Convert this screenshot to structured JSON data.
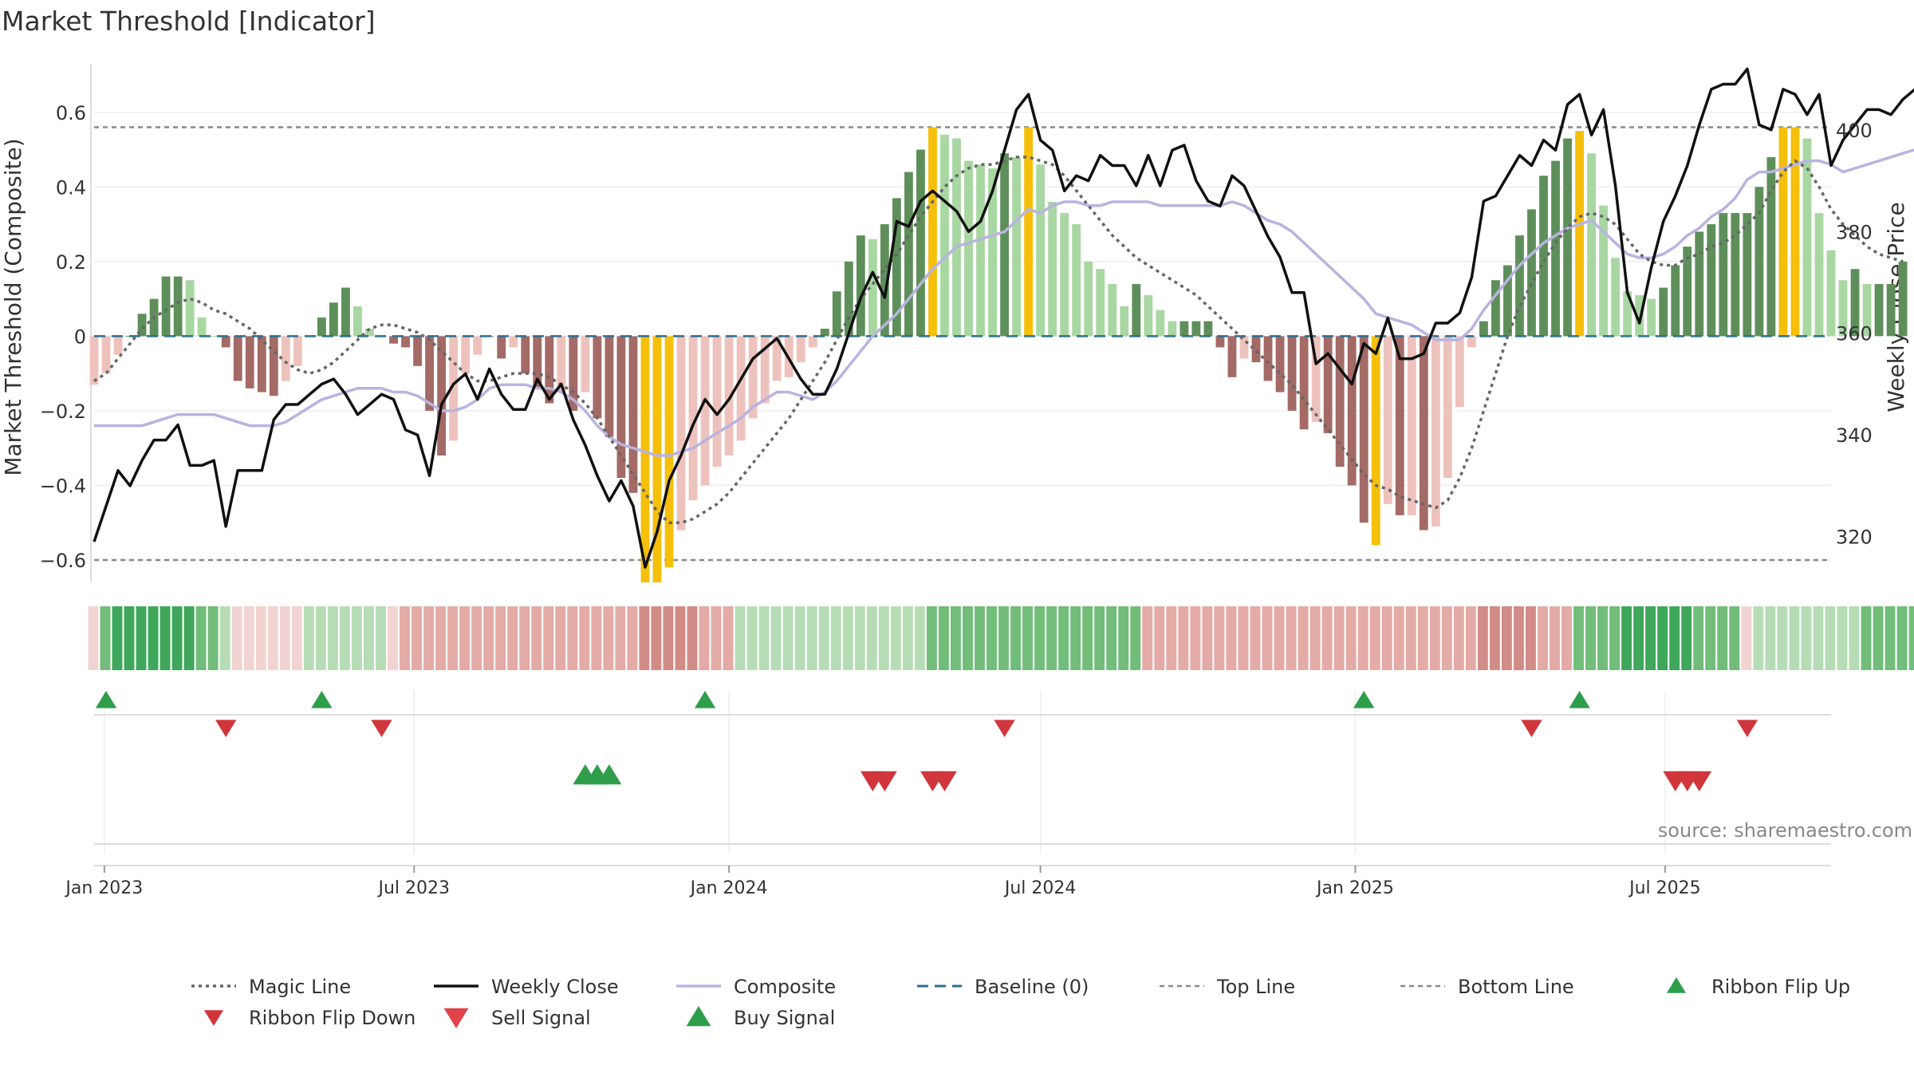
{
  "title": "Market Threshold [Indicator]",
  "source": "source: sharemaestro.com",
  "chart_data": {
    "type": "bar",
    "title": "Market Threshold [Indicator]",
    "ylabel": "Market Threshold (Composite)",
    "y2label": "Weekly Close Price",
    "ylim": [
      -0.66,
      0.73
    ],
    "y2lim": [
      311,
      413
    ],
    "left_ticks": [
      {
        "v": 0.6,
        "label": "0.6"
      },
      {
        "v": 0.4,
        "label": "0.4"
      },
      {
        "v": 0.2,
        "label": "0.2"
      },
      {
        "v": 0,
        "label": "0"
      },
      {
        "v": -0.2,
        "label": "−0.2"
      },
      {
        "v": -0.4,
        "label": "−0.4"
      },
      {
        "v": -0.6,
        "label": "−0.6"
      }
    ],
    "right_ticks": [
      {
        "v": 400,
        "label": "400"
      },
      {
        "v": 380,
        "label": "380"
      },
      {
        "v": 360,
        "label": "360"
      },
      {
        "v": 340,
        "label": "340"
      },
      {
        "v": 320,
        "label": "320"
      }
    ],
    "date_range": [
      "2022-12-26",
      "2025-10-06"
    ],
    "date_ticks": [
      {
        "date": "2023-01-01",
        "label": "Jan 2023"
      },
      {
        "date": "2023-07-01",
        "label": "Jul 2023"
      },
      {
        "date": "2024-01-01",
        "label": "Jan 2024"
      },
      {
        "date": "2024-07-01",
        "label": "Jul 2024"
      },
      {
        "date": "2025-01-01",
        "label": "Jan 2025"
      },
      {
        "date": "2025-07-01",
        "label": "Jul 2025"
      }
    ],
    "start_date": "2022-12-26",
    "top_line": 0.56,
    "bottom_line": -0.6,
    "baseline": 0,
    "colors": {
      "magic": "#666666",
      "close": "#111111",
      "composite": "#b9b3e0",
      "baseline": "#2b6e8f",
      "threshold": "#888888",
      "gold": "#f5bf0a",
      "pos_strong": "#5e8f5a",
      "pos_light": "#a8d7a2",
      "neg_strong": "#a36a66",
      "neg_light": "#eec2bc",
      "up": "#2e9e4a",
      "down": "#d0363c"
    },
    "series": [
      {
        "name": "Composite",
        "values": [
          -0.13,
          -0.1,
          -0.05,
          0.0,
          0.06,
          0.1,
          0.16,
          0.16,
          0.15,
          0.05,
          0.0,
          -0.03,
          -0.12,
          -0.14,
          -0.15,
          -0.16,
          -0.12,
          -0.08,
          0.0,
          0.05,
          0.09,
          0.13,
          0.08,
          0.02,
          0.0,
          -0.02,
          -0.03,
          -0.08,
          -0.2,
          -0.32,
          -0.28,
          -0.1,
          -0.05,
          0.0,
          -0.06,
          -0.03,
          -0.1,
          -0.14,
          -0.18,
          -0.15,
          -0.2,
          -0.15,
          -0.22,
          -0.27,
          -0.38,
          -0.42,
          -0.66,
          -0.66,
          -0.62,
          -0.52,
          -0.44,
          -0.4,
          -0.35,
          -0.32,
          -0.28,
          -0.22,
          -0.18,
          -0.12,
          -0.11,
          -0.07,
          -0.03,
          0.02,
          0.12,
          0.2,
          0.27,
          0.26,
          0.3,
          0.37,
          0.44,
          0.5,
          0.56,
          0.54,
          0.53,
          0.47,
          0.46,
          0.45,
          0.49,
          0.48,
          0.56,
          0.46,
          0.36,
          0.33,
          0.3,
          0.2,
          0.18,
          0.14,
          0.08,
          0.14,
          0.11,
          0.07,
          0.04,
          0.04,
          0.04,
          0.04,
          -0.03,
          -0.11,
          -0.06,
          -0.07,
          -0.12,
          -0.15,
          -0.2,
          -0.25,
          -0.23,
          -0.26,
          -0.35,
          -0.4,
          -0.5,
          -0.56,
          -0.45,
          -0.48,
          -0.48,
          -0.52,
          -0.51,
          -0.38,
          -0.19,
          -0.03,
          0.04,
          0.15,
          0.19,
          0.27,
          0.34,
          0.43,
          0.47,
          0.53,
          0.55,
          0.49,
          0.35,
          0.21,
          0.12,
          0.11,
          0.1,
          0.13,
          0.19,
          0.24,
          0.28,
          0.3,
          0.33,
          0.33,
          0.33,
          0.4,
          0.48,
          0.56,
          0.56,
          0.53,
          0.33,
          0.23,
          0.15,
          0.18,
          0.14,
          0.14,
          0.14,
          0.2
        ]
      },
      {
        "name": "Weekly Close",
        "values": [
          319,
          326,
          333,
          330,
          335,
          339,
          339,
          342,
          334,
          334,
          335,
          322,
          333,
          333,
          333,
          343,
          346,
          346,
          348,
          350,
          351,
          348,
          344,
          346,
          348,
          347,
          341,
          340,
          332,
          346,
          350,
          352,
          347,
          353,
          348,
          345,
          345,
          351,
          347,
          350,
          343,
          338,
          332,
          327,
          331,
          326,
          314,
          321,
          331,
          336,
          342,
          347,
          344,
          347,
          351,
          355,
          357,
          359,
          355,
          351,
          348,
          348,
          353,
          360,
          367,
          372,
          367,
          382,
          381,
          386,
          388,
          386,
          384,
          380,
          382,
          388,
          396,
          404,
          407,
          398,
          396,
          388,
          391,
          390,
          395,
          393,
          393,
          389,
          395,
          389,
          396,
          397,
          390,
          386,
          385,
          391,
          389,
          384,
          379,
          375,
          368,
          368,
          354,
          356,
          353,
          350,
          358,
          356,
          363,
          355,
          355,
          356,
          362,
          362,
          364,
          371,
          386,
          387,
          391,
          395,
          393,
          398,
          396,
          405,
          407,
          399,
          404,
          389,
          368,
          362,
          373,
          382,
          387,
          393,
          401,
          408,
          409,
          409,
          412,
          401,
          400,
          408,
          407,
          403,
          407,
          393,
          398,
          401,
          404,
          404,
          403,
          406,
          408
        ],
        "note": "close values shown on right axis"
      },
      {
        "name": "Magic Line",
        "values": [
          -0.12,
          -0.1,
          -0.06,
          -0.02,
          0.02,
          0.05,
          0.07,
          0.09,
          0.1,
          0.09,
          0.07,
          0.06,
          0.04,
          0.02,
          -0.01,
          -0.04,
          -0.07,
          -0.09,
          -0.1,
          -0.09,
          -0.07,
          -0.04,
          -0.01,
          0.02,
          0.03,
          0.03,
          0.02,
          0.01,
          -0.01,
          -0.04,
          -0.07,
          -0.1,
          -0.12,
          -0.12,
          -0.11,
          -0.1,
          -0.1,
          -0.1,
          -0.11,
          -0.13,
          -0.15,
          -0.18,
          -0.22,
          -0.27,
          -0.32,
          -0.37,
          -0.42,
          -0.47,
          -0.5,
          -0.5,
          -0.49,
          -0.47,
          -0.45,
          -0.42,
          -0.38,
          -0.34,
          -0.3,
          -0.26,
          -0.22,
          -0.17,
          -0.12,
          -0.07,
          -0.01,
          0.05,
          0.1,
          0.14,
          0.18,
          0.22,
          0.27,
          0.32,
          0.36,
          0.4,
          0.43,
          0.45,
          0.46,
          0.46,
          0.47,
          0.48,
          0.48,
          0.47,
          0.46,
          0.43,
          0.39,
          0.35,
          0.31,
          0.27,
          0.24,
          0.21,
          0.19,
          0.17,
          0.15,
          0.13,
          0.11,
          0.08,
          0.05,
          0.02,
          -0.01,
          -0.04,
          -0.07,
          -0.1,
          -0.13,
          -0.17,
          -0.21,
          -0.25,
          -0.29,
          -0.33,
          -0.37,
          -0.4,
          -0.41,
          -0.43,
          -0.44,
          -0.45,
          -0.46,
          -0.44,
          -0.38,
          -0.3,
          -0.2,
          -0.1,
          0.0,
          0.08,
          0.14,
          0.2,
          0.25,
          0.29,
          0.32,
          0.33,
          0.32,
          0.3,
          0.26,
          0.22,
          0.2,
          0.19,
          0.19,
          0.21,
          0.22,
          0.24,
          0.25,
          0.27,
          0.3,
          0.33,
          0.39,
          0.44,
          0.47,
          0.45,
          0.4,
          0.34,
          0.3,
          0.27,
          0.24,
          0.22,
          0.21,
          0.2
        ]
      },
      {
        "name": "Composite line",
        "values": [
          -0.24,
          -0.24,
          -0.24,
          -0.24,
          -0.24,
          -0.23,
          -0.22,
          -0.21,
          -0.21,
          -0.21,
          -0.21,
          -0.22,
          -0.23,
          -0.24,
          -0.24,
          -0.24,
          -0.23,
          -0.21,
          -0.19,
          -0.17,
          -0.16,
          -0.15,
          -0.14,
          -0.14,
          -0.14,
          -0.15,
          -0.15,
          -0.16,
          -0.18,
          -0.2,
          -0.2,
          -0.19,
          -0.17,
          -0.14,
          -0.13,
          -0.13,
          -0.13,
          -0.14,
          -0.14,
          -0.15,
          -0.17,
          -0.2,
          -0.24,
          -0.27,
          -0.29,
          -0.3,
          -0.31,
          -0.32,
          -0.32,
          -0.31,
          -0.3,
          -0.28,
          -0.26,
          -0.24,
          -0.22,
          -0.19,
          -0.17,
          -0.15,
          -0.15,
          -0.16,
          -0.17,
          -0.15,
          -0.12,
          -0.08,
          -0.04,
          0.0,
          0.03,
          0.06,
          0.1,
          0.14,
          0.18,
          0.21,
          0.24,
          0.25,
          0.26,
          0.27,
          0.28,
          0.31,
          0.34,
          0.33,
          0.35,
          0.36,
          0.36,
          0.35,
          0.35,
          0.36,
          0.36,
          0.36,
          0.36,
          0.35,
          0.35,
          0.35,
          0.35,
          0.35,
          0.35,
          0.36,
          0.35,
          0.33,
          0.31,
          0.3,
          0.28,
          0.25,
          0.22,
          0.19,
          0.16,
          0.13,
          0.1,
          0.06,
          0.05,
          0.04,
          0.03,
          0.01,
          -0.01,
          -0.01,
          -0.01,
          0.02,
          0.07,
          0.11,
          0.15,
          0.19,
          0.22,
          0.25,
          0.27,
          0.29,
          0.3,
          0.31,
          0.28,
          0.25,
          0.22,
          0.21,
          0.21,
          0.22,
          0.24,
          0.27,
          0.29,
          0.32,
          0.34,
          0.37,
          0.42,
          0.44,
          0.44,
          0.45,
          0.46,
          0.47,
          0.47,
          0.46,
          0.44,
          0.45,
          0.46,
          0.47,
          0.48,
          0.49,
          0.5
        ]
      }
    ],
    "ribbon_levels": [
      -1,
      2,
      3,
      3,
      3,
      3,
      3,
      3,
      3,
      2,
      2,
      1,
      -1,
      -1,
      -1,
      -1,
      -1,
      -1,
      1,
      1,
      1,
      1,
      1,
      1,
      1,
      -1,
      -2,
      -2,
      -2,
      -2,
      -2,
      -2,
      -2,
      -2,
      -2,
      -2,
      -2,
      -2,
      -2,
      -2,
      -2,
      -2,
      -2,
      -2,
      -2,
      -2,
      -3,
      -3,
      -3,
      -3,
      -3,
      -2,
      -2,
      -2,
      1,
      1,
      1,
      1,
      1,
      1,
      1,
      1,
      1,
      1,
      1,
      1,
      1,
      1,
      1,
      1,
      2,
      2,
      2,
      2,
      2,
      2,
      2,
      2,
      2,
      2,
      2,
      2,
      2,
      2,
      2,
      2,
      2,
      2,
      -2,
      -2,
      -2,
      -2,
      -2,
      -2,
      -2,
      -2,
      -2,
      -2,
      -2,
      -2,
      -2,
      -2,
      -2,
      -2,
      -2,
      -2,
      -2,
      -2,
      -2,
      -2,
      -2,
      -2,
      -2,
      -2,
      -2,
      -2,
      -3,
      -3,
      -3,
      -3,
      -3,
      -2,
      -2,
      -2,
      2,
      2,
      2,
      2,
      3,
      3,
      3,
      3,
      3,
      3,
      2,
      2,
      2,
      2,
      -1,
      1,
      1,
      1,
      1,
      1,
      1,
      1,
      1,
      1,
      2,
      2,
      2,
      2,
      2,
      -2,
      -2,
      -2,
      -2,
      -2
    ],
    "ribbon_flip_up": [
      "2023-01-02",
      "2023-05-08",
      "2023-12-18",
      "2025-01-06",
      "2025-05-12"
    ],
    "ribbon_flip_down": [
      "2023-03-13",
      "2023-06-12",
      "2024-06-10",
      "2025-04-14",
      "2025-08-18"
    ],
    "buy_signal": [
      "2023-10-09",
      "2023-10-16",
      "2023-10-23"
    ],
    "sell_signal": [
      "2024-03-25",
      "2024-04-01",
      "2024-04-29",
      "2024-05-06",
      "2025-07-07",
      "2025-07-14",
      "2025-07-21"
    ],
    "legend": [
      {
        "key": "magic",
        "label": "Magic Line",
        "style": "dotted"
      },
      {
        "key": "close",
        "label": "Weekly Close",
        "style": "solid"
      },
      {
        "key": "composite",
        "label": "Composite",
        "style": "solid"
      },
      {
        "key": "baseline",
        "label": "Baseline (0)",
        "style": "dashed"
      },
      {
        "key": "top",
        "label": "Top Line",
        "style": "dotted-light"
      },
      {
        "key": "bottom",
        "label": "Bottom Line",
        "style": "dotted-light"
      },
      {
        "key": "flipup",
        "label": "Ribbon Flip Up",
        "style": "tri-up-dark"
      },
      {
        "key": "flipdown",
        "label": "Ribbon Flip Down",
        "style": "tri-down-dark"
      },
      {
        "key": "sell",
        "label": "Sell Signal",
        "style": "tri-down"
      },
      {
        "key": "buy",
        "label": "Buy Signal",
        "style": "tri-up"
      }
    ]
  }
}
